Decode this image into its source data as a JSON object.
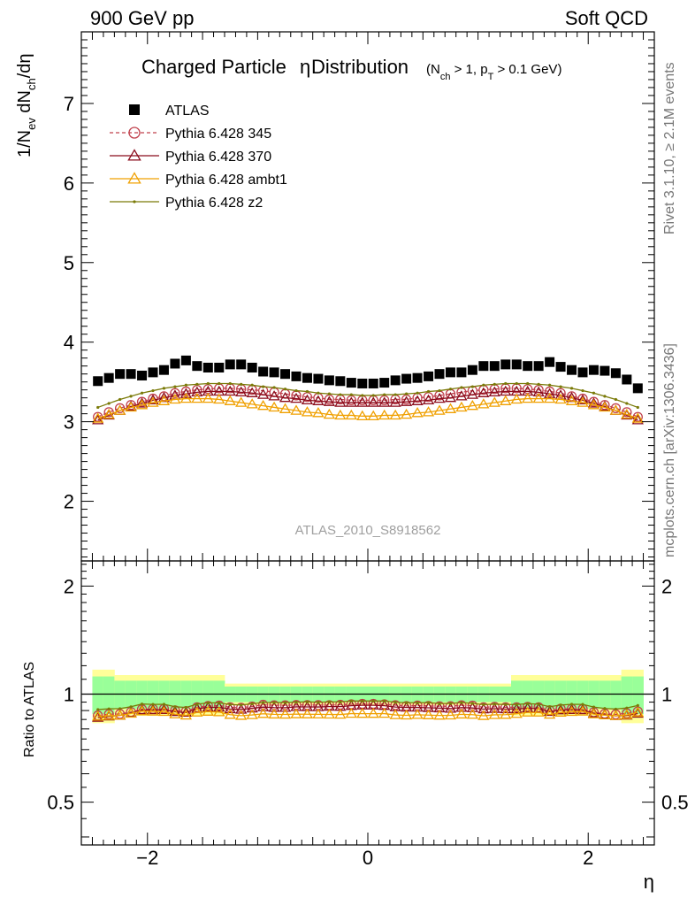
{
  "header": {
    "left": "900 GeV pp",
    "right": "Soft QCD"
  },
  "side_labels": {
    "rivet": "Rivet 3.1.10, ≥ 2.1M events",
    "mcplots": "mcplots.cern.ch [arXiv:1306.3436]"
  },
  "watermark": "ATLAS_2010_S8918562",
  "chart_data": {
    "type": "scatter",
    "title": "Charged Particle",
    "title_symbol": "η",
    "title_rest": " Distribution",
    "title_cut_parts": [
      "(N",
      "ch",
      " > 1, p",
      "T",
      " > 0.1 GeV)"
    ],
    "ylabel_parts": [
      "1/N",
      "ev",
      " dN",
      "ch",
      "/dη"
    ],
    "ratio_ylabel": "Ratio to ATLAS",
    "xlabel": "η",
    "xlim": [
      -2.6,
      2.6
    ],
    "ylim_main": [
      1.25,
      7.9
    ],
    "ylim_ratio": [
      0.38,
      2.35
    ],
    "ratio_log": true,
    "xticks": [
      -2,
      0,
      2
    ],
    "xtick_labels": [
      "−2",
      "0",
      "2"
    ],
    "yticks_main": [
      2,
      3,
      4,
      5,
      6,
      7
    ],
    "yticks_ratio": [
      0.5,
      1,
      2
    ],
    "ytick_ratio_labels": [
      "0.5",
      "1",
      "2"
    ],
    "legend": [
      {
        "name": "ATLAS",
        "color": "#000000",
        "marker": "square",
        "dash": ""
      },
      {
        "name": "Pythia 6.428 345",
        "color": "#c0404c",
        "marker": "circle",
        "dash": "4,3"
      },
      {
        "name": "Pythia 6.428 370",
        "color": "#8b0c1c",
        "marker": "triangle",
        "dash": ""
      },
      {
        "name": "Pythia 6.428 ambt1",
        "color": "#f0a000",
        "marker": "triangle",
        "dash": ""
      },
      {
        "name": "Pythia 6.428 z2",
        "color": "#7a7a08",
        "marker": "dot",
        "dash": ""
      }
    ],
    "x": [
      -2.45,
      -2.35,
      -2.25,
      -2.15,
      -2.05,
      -1.95,
      -1.85,
      -1.75,
      -1.65,
      -1.55,
      -1.45,
      -1.35,
      -1.25,
      -1.15,
      -1.05,
      -0.95,
      -0.85,
      -0.75,
      -0.65,
      -0.55,
      -0.45,
      -0.35,
      -0.25,
      -0.15,
      -0.05,
      0.05,
      0.15,
      0.25,
      0.35,
      0.45,
      0.55,
      0.65,
      0.75,
      0.85,
      0.95,
      1.05,
      1.15,
      1.25,
      1.35,
      1.45,
      1.55,
      1.65,
      1.75,
      1.85,
      1.95,
      2.05,
      2.15,
      2.25,
      2.35,
      2.45
    ],
    "atlas": [
      3.51,
      3.55,
      3.6,
      3.6,
      3.58,
      3.62,
      3.65,
      3.73,
      3.77,
      3.7,
      3.68,
      3.68,
      3.72,
      3.72,
      3.68,
      3.63,
      3.62,
      3.6,
      3.57,
      3.55,
      3.54,
      3.52,
      3.51,
      3.49,
      3.48,
      3.48,
      3.49,
      3.52,
      3.54,
      3.55,
      3.57,
      3.6,
      3.62,
      3.62,
      3.65,
      3.7,
      3.7,
      3.72,
      3.72,
      3.7,
      3.7,
      3.75,
      3.69,
      3.65,
      3.62,
      3.65,
      3.64,
      3.61,
      3.53,
      3.42
    ],
    "stat_band": [
      0.12,
      0.12,
      0.09,
      0.09,
      0.09,
      0.09,
      0.09,
      0.09,
      0.09,
      0.09,
      0.09,
      0.09,
      0.05,
      0.05,
      0.05,
      0.05,
      0.05,
      0.05,
      0.05,
      0.05,
      0.05,
      0.05,
      0.05,
      0.05,
      0.05,
      0.05,
      0.05,
      0.05,
      0.05,
      0.05,
      0.05,
      0.05,
      0.05,
      0.05,
      0.05,
      0.05,
      0.05,
      0.05,
      0.09,
      0.09,
      0.09,
      0.09,
      0.09,
      0.09,
      0.09,
      0.09,
      0.09,
      0.09,
      0.12,
      0.12
    ],
    "syst_band": [
      0.17,
      0.17,
      0.13,
      0.13,
      0.13,
      0.13,
      0.13,
      0.13,
      0.13,
      0.13,
      0.13,
      0.13,
      0.07,
      0.07,
      0.07,
      0.07,
      0.07,
      0.07,
      0.07,
      0.07,
      0.07,
      0.07,
      0.07,
      0.07,
      0.07,
      0.07,
      0.07,
      0.07,
      0.07,
      0.07,
      0.07,
      0.07,
      0.07,
      0.07,
      0.07,
      0.07,
      0.07,
      0.07,
      0.13,
      0.13,
      0.13,
      0.13,
      0.13,
      0.13,
      0.13,
      0.13,
      0.13,
      0.13,
      0.17,
      0.17
    ],
    "series": [
      {
        "name": "Pythia 6.428 345",
        "values": [
          3.06,
          3.12,
          3.17,
          3.21,
          3.25,
          3.29,
          3.32,
          3.36,
          3.38,
          3.4,
          3.41,
          3.42,
          3.42,
          3.41,
          3.4,
          3.39,
          3.37,
          3.35,
          3.33,
          3.31,
          3.3,
          3.28,
          3.28,
          3.27,
          3.27,
          3.27,
          3.27,
          3.28,
          3.28,
          3.3,
          3.31,
          3.33,
          3.35,
          3.37,
          3.39,
          3.4,
          3.41,
          3.42,
          3.42,
          3.41,
          3.4,
          3.38,
          3.36,
          3.32,
          3.29,
          3.25,
          3.21,
          3.17,
          3.12,
          3.06
        ]
      },
      {
        "name": "Pythia 6.428 370",
        "values": [
          3.02,
          3.08,
          3.14,
          3.19,
          3.23,
          3.27,
          3.3,
          3.33,
          3.35,
          3.37,
          3.38,
          3.38,
          3.38,
          3.37,
          3.36,
          3.34,
          3.32,
          3.3,
          3.29,
          3.27,
          3.26,
          3.25,
          3.24,
          3.24,
          3.24,
          3.24,
          3.24,
          3.24,
          3.25,
          3.26,
          3.27,
          3.29,
          3.3,
          3.32,
          3.34,
          3.36,
          3.37,
          3.38,
          3.38,
          3.38,
          3.37,
          3.35,
          3.33,
          3.3,
          3.27,
          3.23,
          3.19,
          3.14,
          3.08,
          3.02
        ]
      },
      {
        "name": "Pythia 6.428 ambt1",
        "values": [
          3.04,
          3.09,
          3.14,
          3.18,
          3.21,
          3.24,
          3.26,
          3.28,
          3.29,
          3.29,
          3.29,
          3.28,
          3.26,
          3.24,
          3.22,
          3.2,
          3.18,
          3.16,
          3.14,
          3.12,
          3.11,
          3.09,
          3.08,
          3.08,
          3.07,
          3.07,
          3.08,
          3.08,
          3.09,
          3.11,
          3.12,
          3.14,
          3.16,
          3.18,
          3.2,
          3.22,
          3.24,
          3.26,
          3.28,
          3.29,
          3.29,
          3.29,
          3.28,
          3.26,
          3.24,
          3.21,
          3.18,
          3.14,
          3.09,
          3.04
        ]
      },
      {
        "name": "Pythia 6.428 z2",
        "values": [
          3.18,
          3.23,
          3.28,
          3.32,
          3.36,
          3.39,
          3.42,
          3.44,
          3.46,
          3.47,
          3.48,
          3.48,
          3.48,
          3.47,
          3.46,
          3.44,
          3.43,
          3.41,
          3.39,
          3.38,
          3.36,
          3.35,
          3.34,
          3.34,
          3.33,
          3.33,
          3.34,
          3.34,
          3.35,
          3.36,
          3.38,
          3.39,
          3.41,
          3.43,
          3.44,
          3.46,
          3.47,
          3.48,
          3.48,
          3.48,
          3.47,
          3.46,
          3.44,
          3.42,
          3.39,
          3.36,
          3.32,
          3.28,
          3.23,
          3.18
        ]
      }
    ]
  }
}
